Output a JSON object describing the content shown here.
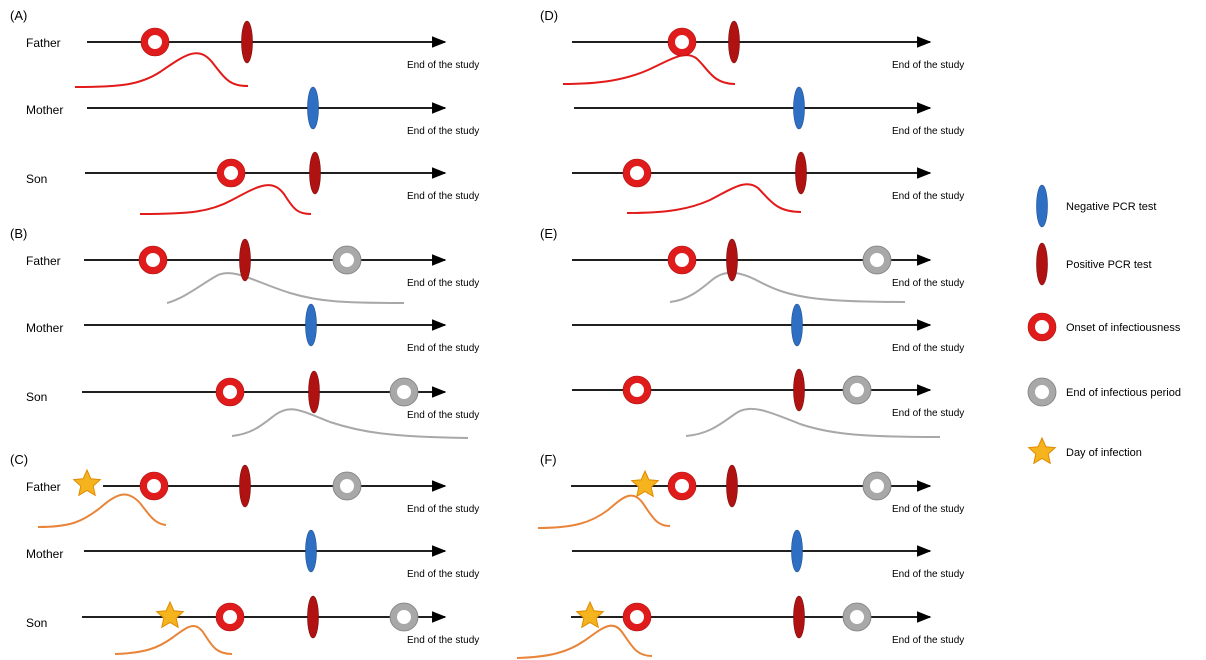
{
  "colors": {
    "axis": "#000000",
    "negative_test": "#2e6fc4",
    "positive_test": "#b01212",
    "onset_ring": "#e01b1b",
    "end_ring": "#a8a8a8",
    "star": "#f5b41e",
    "star_stroke": "#e08a00",
    "curve_red": "#e21a1a",
    "curve_gray": "#a8a8a8",
    "curve_orange": "#e8853a"
  },
  "labels": {
    "end_of_study": "End of the study",
    "persons": [
      "Father",
      "Mother",
      "Son"
    ]
  },
  "panels": [
    {
      "id": "A",
      "label": "(A)",
      "curve": "red"
    },
    {
      "id": "B",
      "label": "(B)",
      "curve": "gray"
    },
    {
      "id": "C",
      "label": "(C)",
      "curve": "orange"
    },
    {
      "id": "D",
      "label": "(D)",
      "curve": "red"
    },
    {
      "id": "E",
      "label": "(E)",
      "curve": "gray"
    },
    {
      "id": "F",
      "label": "(F)",
      "curve": "orange"
    }
  ],
  "legend": [
    {
      "icon": "negative-test",
      "label": "Negative PCR test"
    },
    {
      "icon": "positive-test",
      "label": "Positive PCR test"
    },
    {
      "icon": "onset-ring",
      "label": "Onset of infectiousness"
    },
    {
      "icon": "end-ring",
      "label": "End of infectious period"
    },
    {
      "icon": "star",
      "label": "Day of infection"
    }
  ]
}
